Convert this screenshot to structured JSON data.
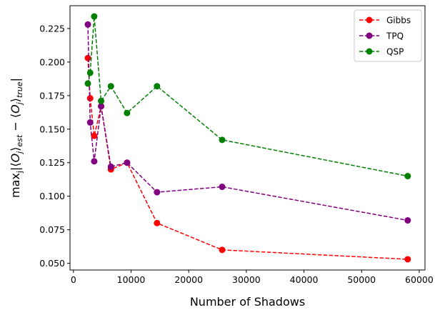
{
  "chart_data": {
    "type": "line",
    "title": "",
    "xlabel": "Number of Shadows",
    "ylabel": "max_j|⟨O_j⟩_est − ⟨O_j⟩_true|",
    "xlim": [
      -600,
      61000
    ],
    "ylim": [
      0.045,
      0.242
    ],
    "xticks": [
      0,
      10000,
      20000,
      30000,
      40000,
      50000,
      60000
    ],
    "xtick_labels": [
      "0",
      "10000",
      "20000",
      "30000",
      "40000",
      "50000",
      "60000"
    ],
    "yticks": [
      0.05,
      0.075,
      0.1,
      0.125,
      0.15,
      0.175,
      0.2,
      0.225
    ],
    "ytick_labels": [
      "0.050",
      "0.075",
      "0.100",
      "0.125",
      "0.150",
      "0.175",
      "0.200",
      "0.225"
    ],
    "legend_position": "top-right",
    "series": [
      {
        "name": "Gibbs",
        "color": "#ff0000",
        "x": [
          2500,
          2900,
          3600,
          4800,
          6500,
          9300,
          14500,
          25800,
          58000
        ],
        "y": [
          0.203,
          0.173,
          0.145,
          0.167,
          0.12,
          0.125,
          0.08,
          0.06,
          0.053
        ]
      },
      {
        "name": "TPQ",
        "color": "#800080",
        "x": [
          2500,
          2900,
          3600,
          4800,
          6500,
          9300,
          14500,
          25800,
          58000
        ],
        "y": [
          0.228,
          0.155,
          0.126,
          0.167,
          0.122,
          0.125,
          0.103,
          0.107,
          0.082
        ]
      },
      {
        "name": "QSP",
        "color": "#008000",
        "x": [
          2500,
          2900,
          3600,
          4800,
          6500,
          9300,
          14500,
          25800,
          58000
        ],
        "y": [
          0.184,
          0.192,
          0.234,
          0.171,
          0.182,
          0.162,
          0.182,
          0.142,
          0.115
        ]
      }
    ]
  }
}
